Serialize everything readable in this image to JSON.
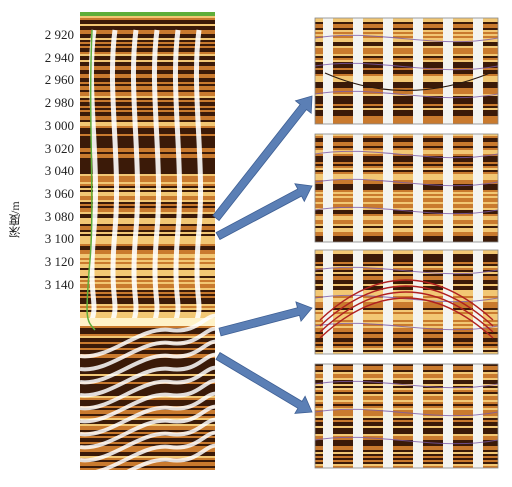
{
  "y_axis": {
    "label": "深度/m",
    "ticks": [
      "2 920",
      "2 940",
      "2 960",
      "2 980",
      "3 000",
      "3 020",
      "3 040",
      "3 060",
      "3 080",
      "3 100",
      "3 120",
      "3 140"
    ]
  },
  "panels": [
    {
      "name": "detail-panel-1"
    },
    {
      "name": "detail-panel-2"
    },
    {
      "name": "detail-panel-3"
    },
    {
      "name": "detail-panel-4"
    }
  ],
  "colors": {
    "dark_band": "#3b1a08",
    "light_band": "#f2c774",
    "mid_band": "#c97a2e",
    "arrow": "#5b7fb5",
    "green_curve": "#5fae3a",
    "purple_trace": "#7a5aa8"
  }
}
